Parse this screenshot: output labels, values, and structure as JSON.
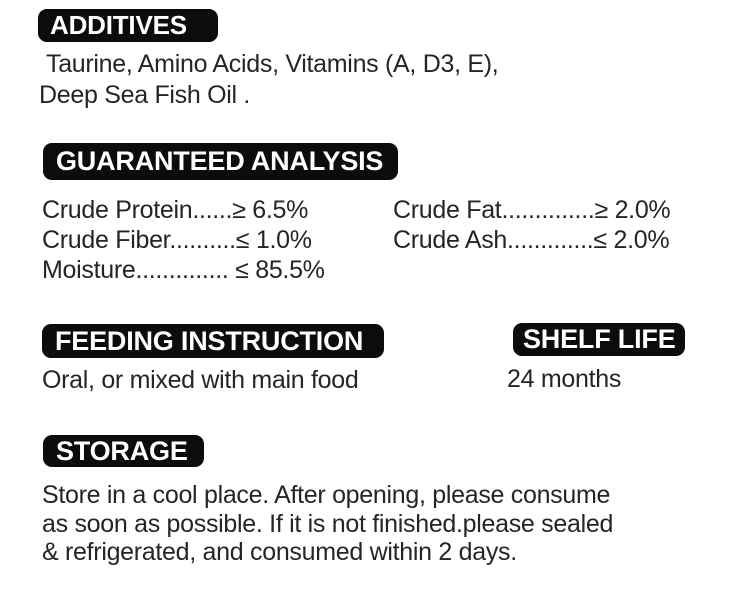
{
  "page": {
    "background_color": "#ffffff",
    "badge_background_color": "#0c0c0c",
    "badge_text_color": "#ffffff",
    "body_text_color": "#282324"
  },
  "additives": {
    "heading": "ADDITIVES",
    "lines": [
      "Taurine, Amino Acids, Vitamins (A, D3, E),",
      "Deep Sea Fish Oil ."
    ]
  },
  "analysis": {
    "heading": "GUARANTEED ANALYSIS",
    "left": [
      "Crude Protein......≥ 6.5%",
      "Crude Fiber..........≤ 1.0%",
      "Moisture.............. ≤ 85.5%"
    ],
    "right": [
      "Crude Fat..............≥ 2.0%",
      "Crude Ash.............≤ 2.0%",
      ""
    ],
    "items": [
      {
        "nutrient": "Crude Protein",
        "relation": "≥",
        "value": "6.5%"
      },
      {
        "nutrient": "Crude Fat",
        "relation": "≥",
        "value": "2.0%"
      },
      {
        "nutrient": "Crude Fiber",
        "relation": "≤",
        "value": "1.0%"
      },
      {
        "nutrient": "Crude Ash",
        "relation": "≤",
        "value": "2.0%"
      },
      {
        "nutrient": "Moisture",
        "relation": "≤",
        "value": "85.5%"
      }
    ]
  },
  "feeding": {
    "heading": "FEEDING INSTRUCTION",
    "text": "Oral, or mixed with main food"
  },
  "shelf_life": {
    "heading": "SHELF LIFE",
    "text": "24 months"
  },
  "storage": {
    "heading": "STORAGE",
    "lines": [
      "Store in a cool place. After opening, please consume",
      "as soon as possible. If it is not finished.please sealed",
      "& refrigerated, and consumed within 2 days."
    ]
  }
}
